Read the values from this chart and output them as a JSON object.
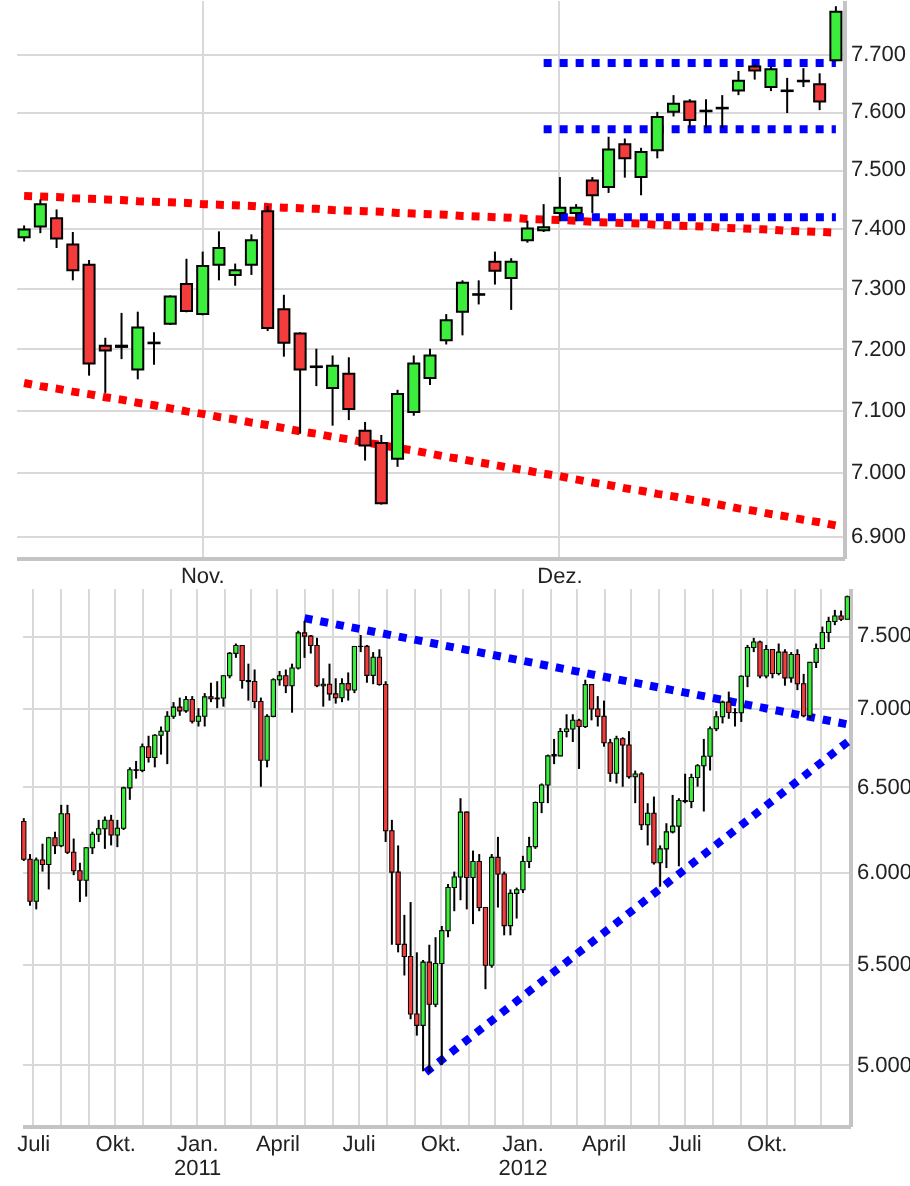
{
  "chart_data": [
    {
      "type": "candlestick",
      "categories": [
        null,
        null,
        null,
        null,
        null,
        null,
        null,
        null,
        null,
        null,
        null,
        "Nov.",
        null,
        null,
        null,
        null,
        null,
        null,
        null,
        null,
        null,
        null,
        null,
        null,
        null,
        null,
        null,
        null,
        null,
        null,
        null,
        null,
        null,
        "Dez.",
        null,
        null,
        null,
        null,
        null,
        null,
        null,
        null,
        null,
        null,
        null,
        null,
        null,
        null,
        null,
        null,
        null
      ],
      "ohlc": [
        [
          7385,
          7405,
          7378,
          7398
        ],
        [
          7403,
          7449,
          7392,
          7441
        ],
        [
          7417,
          7432,
          7367,
          7383
        ],
        [
          7373,
          7394,
          7313,
          7330
        ],
        [
          7339,
          7347,
          7156,
          7176
        ],
        [
          7205,
          7218,
          7128,
          7197
        ],
        [
          7203,
          7259,
          7183,
          7205
        ],
        [
          7166,
          7261,
          7150,
          7235
        ],
        [
          7209,
          7227,
          7174,
          7210
        ],
        [
          7241,
          7288,
          7239,
          7286
        ],
        [
          7307,
          7349,
          7260,
          7262
        ],
        [
          7257,
          7361,
          7255,
          7337
        ],
        [
          7339,
          7395,
          7313,
          7367
        ],
        [
          7322,
          7341,
          7304,
          7330
        ],
        [
          7339,
          7390,
          7322,
          7380
        ],
        [
          7429,
          7438,
          7229,
          7234
        ],
        [
          7265,
          7289,
          7187,
          7210
        ],
        [
          7225,
          7227,
          7062,
          7166
        ],
        [
          7171,
          7200,
          7139,
          7170
        ],
        [
          7136,
          7189,
          7075,
          7172
        ],
        [
          7159,
          7186,
          7084,
          7102
        ],
        [
          7067,
          7081,
          7019,
          7043
        ],
        [
          7047,
          7060,
          6949,
          6951
        ],
        [
          7022,
          7133,
          7009,
          7126
        ],
        [
          7097,
          7189,
          7091,
          7176
        ],
        [
          7152,
          7200,
          7141,
          7189
        ],
        [
          7214,
          7257,
          7207,
          7247
        ],
        [
          7261,
          7313,
          7222,
          7309
        ],
        [
          7289,
          7313,
          7273,
          7290
        ],
        [
          7344,
          7361,
          7306,
          7329
        ],
        [
          7317,
          7350,
          7264,
          7344
        ],
        [
          7380,
          7413,
          7376,
          7400
        ],
        [
          7397,
          7441,
          7394,
          7402
        ],
        [
          7426,
          7487,
          7412,
          7435
        ],
        [
          7426,
          7441,
          7412,
          7435
        ],
        [
          7481,
          7487,
          7426,
          7456
        ],
        [
          7470,
          7556,
          7460,
          7534
        ],
        [
          7543,
          7553,
          7486,
          7519
        ],
        [
          7487,
          7537,
          7456,
          7530
        ],
        [
          7533,
          7599,
          7519,
          7590
        ],
        [
          7599,
          7628,
          7591,
          7613
        ],
        [
          7617,
          7621,
          7571,
          7585
        ],
        [
          7601,
          7621,
          7571,
          7600
        ],
        [
          7605,
          7628,
          7571,
          7606
        ],
        [
          7636,
          7670,
          7628,
          7653
        ],
        [
          7678,
          7681,
          7655,
          7671
        ],
        [
          7642,
          7678,
          7635,
          7673
        ],
        [
          7636,
          7658,
          7597,
          7635
        ],
        [
          7652,
          7675,
          7642,
          7653
        ],
        [
          7647,
          7666,
          7602,
          7617
        ],
        [
          7689,
          7784,
          7687,
          7774
        ]
      ],
      "colors": [
        "#3cee3c",
        "#3cee3c",
        "#f43c3c",
        "#f43c3c",
        "#f43c3c",
        "#f43c3c",
        "#3cee3c",
        "#3cee3c",
        "#3cee3c",
        "#3cee3c",
        "#f43c3c",
        "#3cee3c",
        "#3cee3c",
        "#3cee3c",
        "#3cee3c",
        "#f43c3c",
        "#f43c3c",
        "#f43c3c",
        "#f43c3c",
        "#3cee3c",
        "#f43c3c",
        "#f43c3c",
        "#f43c3c",
        "#3cee3c",
        "#3cee3c",
        "#3cee3c",
        "#3cee3c",
        "#3cee3c",
        "#3cee3c",
        "#f43c3c",
        "#3cee3c",
        "#3cee3c",
        "#3cee3c",
        "#3cee3c",
        "#3cee3c",
        "#f43c3c",
        "#3cee3c",
        "#f43c3c",
        "#3cee3c",
        "#3cee3c",
        "#3cee3c",
        "#f43c3c",
        "#f43c3c",
        "#3cee3c",
        "#3cee3c",
        "#f43c3c",
        "#3cee3c",
        "#f43c3c",
        "#3cee3c",
        "#f43c3c",
        "#3cee3c"
      ],
      "series": [
        {
          "type": "line",
          "color": "#ff0000",
          "line_style": "dotted",
          "values": [
            7455,
            7454,
            7453,
            7451,
            7450,
            7449,
            7448,
            7446,
            7445,
            7444,
            7443,
            7441,
            7440,
            7439,
            7438,
            7436,
            7435,
            7434,
            7433,
            7431,
            7430,
            7429,
            7428,
            7426,
            7425,
            7424,
            7423,
            7421,
            7420,
            7419,
            7418,
            7416,
            7415,
            7414,
            7413,
            7411,
            7410,
            7409,
            7408,
            7406,
            7405,
            7404,
            7403,
            7401,
            7400,
            7399,
            7398,
            7396,
            7395,
            7394,
            7393
          ]
        },
        {
          "type": "line",
          "color": "#ff0000",
          "line_style": "dotted",
          "values": [
            7144,
            7139,
            7135,
            7130,
            7126,
            7121,
            7117,
            7112,
            7108,
            7103,
            7098,
            7094,
            7089,
            7085,
            7080,
            7076,
            7071,
            7066,
            7062,
            7057,
            7053,
            7048,
            7044,
            7039,
            7035,
            7030,
            7025,
            7021,
            7016,
            7012,
            7007,
            7003,
            6998,
            6994,
            6989,
            6984,
            6980,
            6975,
            6971,
            6966,
            6962,
            6957,
            6953,
            6948,
            6943,
            6939,
            6934,
            6930,
            6925,
            6921,
            6916
          ]
        },
        {
          "type": "line",
          "color": "#0000ff",
          "line_style": "dotted",
          "values": [
            null,
            null,
            null,
            null,
            null,
            null,
            null,
            null,
            null,
            null,
            null,
            null,
            null,
            null,
            null,
            null,
            null,
            null,
            null,
            null,
            null,
            null,
            null,
            null,
            null,
            null,
            null,
            null,
            null,
            null,
            null,
            null,
            7684,
            7684,
            7684,
            7684,
            7684,
            7684,
            7684,
            7684,
            7684,
            7684,
            7684,
            7684,
            7684,
            7684,
            7684,
            7684,
            7684,
            7684,
            7684
          ]
        },
        {
          "type": "line",
          "color": "#0000ff",
          "line_style": "dotted",
          "values": [
            null,
            null,
            null,
            null,
            null,
            null,
            null,
            null,
            null,
            null,
            null,
            null,
            null,
            null,
            null,
            null,
            null,
            null,
            null,
            null,
            null,
            null,
            null,
            null,
            null,
            null,
            null,
            null,
            null,
            null,
            null,
            null,
            7569,
            7569,
            7569,
            7569,
            7569,
            7569,
            7569,
            7569,
            7569,
            7569,
            7569,
            7569,
            7569,
            7569,
            7569,
            7569,
            7569,
            7569,
            7569
          ]
        },
        {
          "type": "line",
          "color": "#0000ff",
          "line_style": "dotted",
          "values": [
            null,
            null,
            null,
            null,
            null,
            null,
            null,
            null,
            null,
            null,
            null,
            null,
            null,
            null,
            null,
            null,
            null,
            null,
            null,
            null,
            null,
            null,
            null,
            null,
            null,
            null,
            null,
            null,
            null,
            null,
            null,
            null,
            null,
            7419,
            7419,
            7419,
            7419,
            7419,
            7419,
            7419,
            7419,
            7419,
            7419,
            7419,
            7419,
            7419,
            7419,
            7419,
            7419,
            7419,
            7419
          ]
        }
      ],
      "ylim": [
        6865,
        7795
      ],
      "yticks": [
        {
          "value": 6900,
          "label": "6.900"
        },
        {
          "value": 7000,
          "label": "7.000"
        },
        {
          "value": 7100,
          "label": "7.100"
        },
        {
          "value": 7200,
          "label": "7.200"
        },
        {
          "value": 7300,
          "label": "7.300"
        },
        {
          "value": 7400,
          "label": "7.400"
        },
        {
          "value": 7500,
          "label": "7.500"
        },
        {
          "value": 7600,
          "label": "7.600"
        },
        {
          "value": 7700,
          "label": "7.700"
        }
      ],
      "grid": true,
      "log": "y"
    },
    {
      "type": "candlestick",
      "x": [
        "2010-06-21",
        "2010-06-28",
        "2010-07-05",
        "2010-07-12",
        "2010-07-19",
        "2010-07-26",
        "2010-08-02",
        "2010-08-09",
        "2010-08-16",
        "2010-08-23",
        "2010-08-30",
        "2010-09-06",
        "2010-09-13",
        "2010-09-20",
        "2010-09-27",
        "2010-10-04",
        "2010-10-11",
        "2010-10-18",
        "2010-10-25",
        "2010-11-01",
        "2010-11-08",
        "2010-11-15",
        "2010-11-22",
        "2010-11-29",
        "2010-12-06",
        "2010-12-13",
        "2010-12-20",
        "2010-12-27",
        "2011-01-03",
        "2011-01-10",
        "2011-01-17",
        "2011-01-24",
        "2011-01-31",
        "2011-02-07",
        "2011-02-14",
        "2011-02-21",
        "2011-02-28",
        "2011-03-07",
        "2011-03-14",
        "2011-03-21",
        "2011-03-28",
        "2011-04-04",
        "2011-04-11",
        "2011-04-18",
        "2011-04-25",
        "2011-05-02",
        "2011-05-09",
        "2011-05-16",
        "2011-05-23",
        "2011-05-30",
        "2011-06-06",
        "2011-06-13",
        "2011-06-20",
        "2011-06-27",
        "2011-07-04",
        "2011-07-11",
        "2011-07-18",
        "2011-07-25",
        "2011-08-01",
        "2011-08-08",
        "2011-08-15",
        "2011-08-22",
        "2011-08-29",
        "2011-09-05",
        "2011-09-12",
        "2011-09-19",
        "2011-09-26",
        "2011-10-03",
        "2011-10-10",
        "2011-10-17",
        "2011-10-24",
        "2011-10-31",
        "2011-11-07",
        "2011-11-14",
        "2011-11-21",
        "2011-11-28",
        "2011-12-05",
        "2011-12-12",
        "2011-12-19",
        "2011-12-26",
        "2012-01-02",
        "2012-01-09",
        "2012-01-16",
        "2012-01-23",
        "2012-01-30",
        "2012-02-06",
        "2012-02-13",
        "2012-02-20",
        "2012-02-27",
        "2012-03-05",
        "2012-03-12",
        "2012-03-19",
        "2012-03-26",
        "2012-04-02",
        "2012-04-09",
        "2012-04-16",
        "2012-04-23",
        "2012-04-30",
        "2012-05-07",
        "2012-05-14",
        "2012-05-21",
        "2012-05-28",
        "2012-06-04",
        "2012-06-11",
        "2012-06-18",
        "2012-06-25",
        "2012-07-02",
        "2012-07-09",
        "2012-07-16",
        "2012-07-23",
        "2012-07-30",
        "2012-08-06",
        "2012-08-13",
        "2012-08-20",
        "2012-08-27",
        "2012-09-03",
        "2012-09-10",
        "2012-09-17",
        "2012-09-24",
        "2012-10-01",
        "2012-10-08",
        "2012-10-15",
        "2012-10-22",
        "2012-10-29",
        "2012-11-05",
        "2012-11-12",
        "2012-11-19",
        "2012-11-26",
        "2012-12-03",
        "2012-12-10",
        "2012-12-17",
        "2012-12-24",
        "2012-12-31"
      ],
      "ohlc": [
        [
          6290,
          6310,
          6060,
          6070
        ],
        [
          6070,
          6100,
          5810,
          5834
        ],
        [
          5834,
          6080,
          5790,
          6066
        ],
        [
          6066,
          6160,
          6000,
          6040
        ],
        [
          6040,
          6200,
          5900,
          6195
        ],
        [
          6195,
          6230,
          6100,
          6148
        ],
        [
          6148,
          6390,
          6140,
          6336
        ],
        [
          6336,
          6390,
          6100,
          6110
        ],
        [
          6110,
          6190,
          5980,
          6005
        ],
        [
          6005,
          6050,
          5830,
          5951
        ],
        [
          5951,
          6140,
          5860,
          6136
        ],
        [
          6136,
          6230,
          6100,
          6215
        ],
        [
          6215,
          6300,
          6170,
          6247
        ],
        [
          6247,
          6320,
          6130,
          6298
        ],
        [
          6298,
          6330,
          6150,
          6211
        ],
        [
          6211,
          6300,
          6140,
          6250
        ],
        [
          6250,
          6500,
          6240,
          6493
        ],
        [
          6493,
          6620,
          6420,
          6605
        ],
        [
          6605,
          6660,
          6550,
          6601
        ],
        [
          6601,
          6770,
          6590,
          6750
        ],
        [
          6750,
          6820,
          6650,
          6682
        ],
        [
          6682,
          6830,
          6620,
          6823
        ],
        [
          6823,
          6880,
          6700,
          6849
        ],
        [
          6849,
          6980,
          6640,
          6947
        ],
        [
          6947,
          7040,
          6930,
          7007
        ],
        [
          7007,
          7070,
          6950,
          6982
        ],
        [
          6982,
          7080,
          6970,
          7057
        ],
        [
          7057,
          7080,
          6900,
          6914
        ],
        [
          6914,
          7000,
          6880,
          6947
        ],
        [
          6947,
          7100,
          6880,
          7075
        ],
        [
          7075,
          7170,
          7040,
          7062
        ],
        [
          7062,
          7180,
          7000,
          7067
        ],
        [
          7067,
          7220,
          7010,
          7217
        ],
        [
          7217,
          7380,
          7200,
          7371
        ],
        [
          7371,
          7440,
          7340,
          7426
        ],
        [
          7426,
          7430,
          7130,
          7185
        ],
        [
          7185,
          7300,
          7050,
          7178
        ],
        [
          7178,
          7260,
          7000,
          7044
        ],
        [
          7044,
          7070,
          6500,
          6664
        ],
        [
          6664,
          6960,
          6620,
          6946
        ],
        [
          6946,
          7200,
          6940,
          7190
        ],
        [
          7190,
          7250,
          7150,
          7217
        ],
        [
          7217,
          7260,
          7100,
          7150
        ],
        [
          7150,
          7300,
          6970,
          7270
        ],
        [
          7270,
          7530,
          7260,
          7515
        ],
        [
          7515,
          7600,
          7340,
          7492
        ],
        [
          7492,
          7500,
          7370,
          7426
        ],
        [
          7426,
          7480,
          7140,
          7150
        ],
        [
          7150,
          7200,
          7010,
          7160
        ],
        [
          7160,
          7300,
          7050,
          7095
        ],
        [
          7095,
          7200,
          7030,
          7069
        ],
        [
          7069,
          7200,
          7040,
          7164
        ],
        [
          7164,
          7240,
          7050,
          7121
        ],
        [
          7121,
          7420,
          7100,
          7419
        ],
        [
          7419,
          7500,
          7380,
          7420
        ],
        [
          7420,
          7430,
          7170,
          7220
        ],
        [
          7220,
          7380,
          7160,
          7344
        ],
        [
          7344,
          7400,
          7150,
          7158
        ],
        [
          7158,
          7180,
          6170,
          6236
        ],
        [
          6236,
          6300,
          5600,
          5997
        ],
        [
          5997,
          6150,
          5560,
          5602
        ],
        [
          5602,
          5760,
          5440,
          5538
        ],
        [
          5538,
          5830,
          5220,
          5246
        ],
        [
          5246,
          5560,
          5140,
          5190
        ],
        [
          5190,
          5520,
          4970,
          5509
        ],
        [
          5509,
          5600,
          4966,
          5294
        ],
        [
          5294,
          5640,
          5280,
          5502
        ],
        [
          5502,
          5700,
          5000,
          5675
        ],
        [
          5675,
          5930,
          5640,
          5911
        ],
        [
          5911,
          6000,
          5780,
          5970
        ],
        [
          5970,
          6430,
          5840,
          6346
        ],
        [
          6346,
          6350,
          5790,
          5967
        ],
        [
          5967,
          6120,
          5710,
          6057
        ],
        [
          6057,
          6100,
          5780,
          5800
        ],
        [
          5800,
          5800,
          5370,
          5493
        ],
        [
          5493,
          6100,
          5480,
          6081
        ],
        [
          6081,
          6200,
          5800,
          5986
        ],
        [
          5986,
          6000,
          5650,
          5702
        ],
        [
          5702,
          5900,
          5650,
          5878
        ],
        [
          5878,
          5910,
          5740,
          5898
        ],
        [
          5898,
          6090,
          5880,
          6057
        ],
        [
          6057,
          6200,
          6020,
          6143
        ],
        [
          6143,
          6410,
          6130,
          6404
        ],
        [
          6404,
          6520,
          6340,
          6511
        ],
        [
          6511,
          6700,
          6400,
          6692
        ],
        [
          6700,
          6800,
          6640,
          6692
        ],
        [
          6692,
          6870,
          6690,
          6848
        ],
        [
          6848,
          6960,
          6810,
          6864
        ],
        [
          6864,
          6960,
          6780,
          6921
        ],
        [
          6921,
          6930,
          6610,
          6880
        ],
        [
          6880,
          7190,
          6870,
          7157
        ],
        [
          7157,
          7160,
          6920,
          6995
        ],
        [
          6995,
          7080,
          6880,
          6946
        ],
        [
          6946,
          7050,
          6750,
          6775
        ],
        [
          6775,
          6800,
          6530,
          6583
        ],
        [
          6583,
          6820,
          6520,
          6801
        ],
        [
          6801,
          6810,
          6500,
          6761
        ],
        [
          6761,
          6850,
          6550,
          6561
        ],
        [
          6561,
          6600,
          6400,
          6579
        ],
        [
          6579,
          6590,
          6240,
          6271
        ],
        [
          6271,
          6400,
          6150,
          6339
        ],
        [
          6339,
          6440,
          6040,
          6050
        ],
        [
          6050,
          6150,
          5915,
          6130
        ],
        [
          6130,
          6280,
          6020,
          6229
        ],
        [
          6229,
          6450,
          6220,
          6263
        ],
        [
          6263,
          6430,
          6030,
          6416
        ],
        [
          6416,
          6580,
          6400,
          6410
        ],
        [
          6410,
          6580,
          6370,
          6557
        ],
        [
          6557,
          6640,
          6500,
          6630
        ],
        [
          6630,
          6800,
          6350,
          6689
        ],
        [
          6689,
          6880,
          6600,
          6865
        ],
        [
          6865,
          6980,
          6850,
          6944
        ],
        [
          6944,
          7050,
          6900,
          7040
        ],
        [
          7040,
          7110,
          6930,
          6971
        ],
        [
          6971,
          7000,
          6880,
          6970
        ],
        [
          6970,
          7220,
          6910,
          7214
        ],
        [
          7214,
          7430,
          7140,
          7412
        ],
        [
          7412,
          7480,
          7380,
          7451
        ],
        [
          7451,
          7460,
          7200,
          7216
        ],
        [
          7216,
          7430,
          7200,
          7398
        ],
        [
          7398,
          7400,
          7200,
          7233
        ],
        [
          7233,
          7440,
          7220,
          7380
        ],
        [
          7380,
          7400,
          7150,
          7203
        ],
        [
          7203,
          7380,
          7170,
          7363
        ],
        [
          7363,
          7400,
          7120,
          7163
        ],
        [
          7163,
          7230,
          6940,
          6950
        ],
        [
          6950,
          7310,
          6930,
          7309
        ],
        [
          7309,
          7440,
          7270,
          7405
        ],
        [
          7405,
          7560,
          7400,
          7518
        ],
        [
          7518,
          7630,
          7450,
          7596
        ],
        [
          7596,
          7680,
          7570,
          7636
        ],
        [
          7636,
          7675,
          7600,
          7612
        ],
        [
          7612,
          7784,
          7612,
          7776
        ]
      ],
      "colors": [
        "#f43c3c",
        "#f43c3c",
        "#3cee3c",
        "#f43c3c",
        "#3cee3c",
        "#f43c3c",
        "#3cee3c",
        "#f43c3c",
        "#f43c3c",
        "#f43c3c",
        "#3cee3c",
        "#3cee3c",
        "#3cee3c",
        "#3cee3c",
        "#f43c3c",
        "#3cee3c",
        "#3cee3c",
        "#3cee3c",
        "#f43c3c",
        "#3cee3c",
        "#f43c3c",
        "#3cee3c",
        "#3cee3c",
        "#3cee3c",
        "#3cee3c",
        "#f43c3c",
        "#3cee3c",
        "#f43c3c",
        "#3cee3c",
        "#3cee3c",
        "#f43c3c",
        "#3cee3c",
        "#3cee3c",
        "#3cee3c",
        "#3cee3c",
        "#f43c3c",
        "#f43c3c",
        "#f43c3c",
        "#f43c3c",
        "#3cee3c",
        "#3cee3c",
        "#3cee3c",
        "#f43c3c",
        "#3cee3c",
        "#3cee3c",
        "#f43c3c",
        "#f43c3c",
        "#f43c3c",
        "#3cee3c",
        "#f43c3c",
        "#f43c3c",
        "#3cee3c",
        "#f43c3c",
        "#3cee3c",
        "#3cee3c",
        "#f43c3c",
        "#3cee3c",
        "#f43c3c",
        "#f43c3c",
        "#f43c3c",
        "#f43c3c",
        "#f43c3c",
        "#f43c3c",
        "#f43c3c",
        "#3cee3c",
        "#f43c3c",
        "#3cee3c",
        "#3cee3c",
        "#3cee3c",
        "#3cee3c",
        "#3cee3c",
        "#f43c3c",
        "#3cee3c",
        "#f43c3c",
        "#f43c3c",
        "#3cee3c",
        "#f43c3c",
        "#f43c3c",
        "#3cee3c",
        "#3cee3c",
        "#3cee3c",
        "#3cee3c",
        "#3cee3c",
        "#3cee3c",
        "#3cee3c",
        "#f43c3c",
        "#3cee3c",
        "#3cee3c",
        "#3cee3c",
        "#f43c3c",
        "#3cee3c",
        "#f43c3c",
        "#f43c3c",
        "#f43c3c",
        "#f43c3c",
        "#3cee3c",
        "#f43c3c",
        "#f43c3c",
        "#3cee3c",
        "#f43c3c",
        "#3cee3c",
        "#f43c3c",
        "#3cee3c",
        "#3cee3c",
        "#3cee3c",
        "#3cee3c",
        "#f43c3c",
        "#3cee3c",
        "#3cee3c",
        "#3cee3c",
        "#3cee3c",
        "#3cee3c",
        "#3cee3c",
        "#f43c3c",
        "#f43c3c",
        "#3cee3c",
        "#3cee3c",
        "#3cee3c",
        "#f43c3c",
        "#3cee3c",
        "#f43c3c",
        "#3cee3c",
        "#f43c3c",
        "#3cee3c",
        "#f43c3c",
        "#f43c3c",
        "#3cee3c",
        "#3cee3c",
        "#3cee3c",
        "#3cee3c",
        "#3cee3c",
        "#f43c3c",
        "#3cee3c"
      ],
      "series": [
        {
          "type": "line",
          "color": "#0000ff",
          "line_style": "dotted",
          "x": [
            "2011-05-02",
            "2013-01-03"
          ],
          "values": [
            7620,
            6891
          ]
        },
        {
          "type": "line",
          "color": "#0000ff",
          "line_style": "dotted",
          "x": [
            "2011-09-15",
            "2013-01-03"
          ],
          "values": [
            4965,
            6793
          ]
        }
      ],
      "xlim": [
        "2010-06-19",
        "2013-01-03"
      ],
      "ylim": [
        4720,
        7840
      ],
      "xticks": [
        {
          "value": "2010-07-01",
          "label": "Juli"
        },
        {
          "value": "2010-08-01",
          "label": null
        },
        {
          "value": "2010-09-01",
          "label": null
        },
        {
          "value": "2010-10-01",
          "label": "Okt."
        },
        {
          "value": "2010-11-01",
          "label": null
        },
        {
          "value": "2010-12-01",
          "label": null
        },
        {
          "value": "2011-01-01",
          "label": "Jan.\n2011"
        },
        {
          "value": "2011-02-01",
          "label": null
        },
        {
          "value": "2011-03-01",
          "label": null
        },
        {
          "value": "2011-04-01",
          "label": "April"
        },
        {
          "value": "2011-05-01",
          "label": null
        },
        {
          "value": "2011-06-01",
          "label": null
        },
        {
          "value": "2011-07-01",
          "label": "Juli"
        },
        {
          "value": "2011-08-01",
          "label": null
        },
        {
          "value": "2011-09-01",
          "label": null
        },
        {
          "value": "2011-10-01",
          "label": "Okt."
        },
        {
          "value": "2011-11-01",
          "label": null
        },
        {
          "value": "2011-12-01",
          "label": null
        },
        {
          "value": "2012-01-01",
          "label": "Jan.\n2012"
        },
        {
          "value": "2012-02-01",
          "label": null
        },
        {
          "value": "2012-03-01",
          "label": null
        },
        {
          "value": "2012-04-01",
          "label": "April"
        },
        {
          "value": "2012-05-01",
          "label": null
        },
        {
          "value": "2012-06-01",
          "label": null
        },
        {
          "value": "2012-07-01",
          "label": "Juli"
        },
        {
          "value": "2012-08-01",
          "label": null
        },
        {
          "value": "2012-09-01",
          "label": null
        },
        {
          "value": "2012-10-01",
          "label": "Okt."
        },
        {
          "value": "2012-11-01",
          "label": null
        },
        {
          "value": "2012-12-01",
          "label": null
        }
      ],
      "yticks": [
        {
          "value": 5000,
          "label": "5.000"
        },
        {
          "value": 5500,
          "label": "5.500"
        },
        {
          "value": 6000,
          "label": "6.000"
        },
        {
          "value": 6500,
          "label": "6.500"
        },
        {
          "value": 7000,
          "label": "7.000"
        },
        {
          "value": 7500,
          "label": "7.500"
        }
      ],
      "grid": true,
      "log": "y"
    }
  ]
}
